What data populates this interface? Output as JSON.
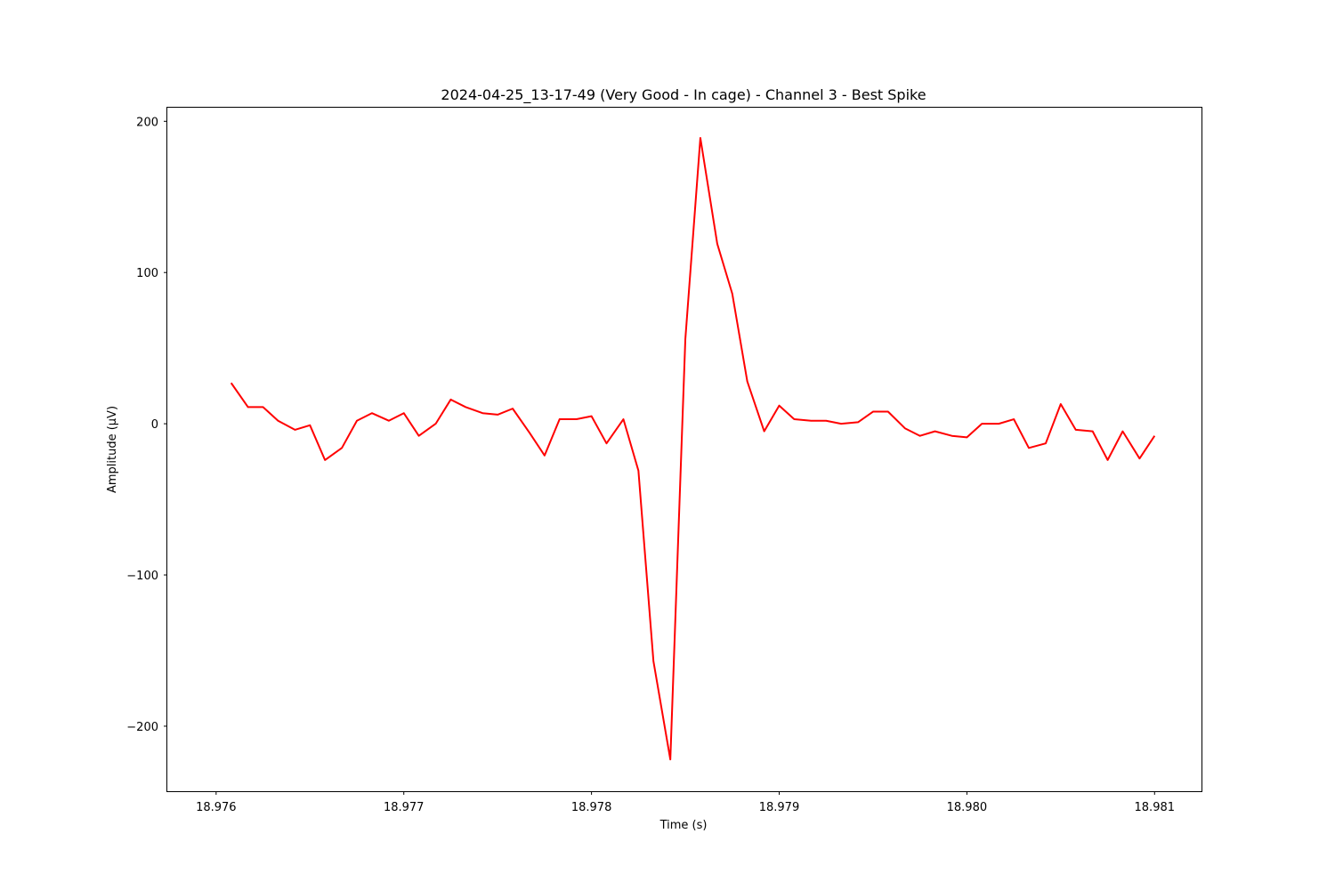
{
  "chart_data": {
    "type": "line",
    "title": "2024-04-25_13-17-49 (Very Good - In cage) - Channel 3 - Best Spike",
    "xlabel": "Time (s)",
    "ylabel": "Amplitude (µV)",
    "xlim": [
      18.97574,
      18.98125
    ],
    "ylim": [
      -243,
      209
    ],
    "xticks": [
      18.976,
      18.977,
      18.978,
      18.979,
      18.98,
      18.981
    ],
    "xtick_labels": [
      "18.976",
      "18.977",
      "18.978",
      "18.979",
      "18.980",
      "18.981"
    ],
    "yticks": [
      200,
      100,
      0,
      -100,
      -200
    ],
    "ytick_labels": [
      "200",
      "100",
      "0",
      "−100",
      "−200"
    ],
    "grid": false,
    "series": [
      {
        "color": "#ff0000",
        "x": [
          18.97608,
          18.97617,
          18.97625,
          18.97633,
          18.97642,
          18.9765,
          18.97658,
          18.97667,
          18.97675,
          18.97683,
          18.97692,
          18.977,
          18.97708,
          18.97717,
          18.97725,
          18.97733,
          18.97742,
          18.9775,
          18.97758,
          18.97767,
          18.97775,
          18.97783,
          18.97792,
          18.978,
          18.97808,
          18.97817,
          18.97825,
          18.97833,
          18.97842,
          18.9785,
          18.97858,
          18.97867,
          18.97875,
          18.97883,
          18.97892,
          18.979,
          18.97908,
          18.97917,
          18.97925,
          18.97933,
          18.97942,
          18.9795,
          18.97958,
          18.97967,
          18.97975,
          18.97983,
          18.97992,
          18.98,
          18.98008,
          18.98017,
          18.98025,
          18.98033,
          18.98042,
          18.9805,
          18.98058,
          18.98067,
          18.98075,
          18.98083,
          18.98092,
          18.981
        ],
        "y": [
          27,
          11,
          11,
          2,
          -4,
          -1,
          -24,
          -16,
          2,
          7,
          2,
          7,
          -8,
          0,
          16,
          11,
          7,
          6,
          10,
          -6,
          -21,
          3,
          3,
          5,
          -13,
          3,
          -31,
          -157,
          -222,
          56,
          189,
          119,
          86,
          28,
          -5,
          12,
          3,
          2,
          2,
          0,
          1,
          8,
          8,
          -3,
          -8,
          -5,
          -8,
          -9,
          0,
          0,
          3,
          -16,
          -13,
          13,
          -4,
          -5,
          -24,
          -5,
          -23,
          -8
        ]
      }
    ]
  }
}
